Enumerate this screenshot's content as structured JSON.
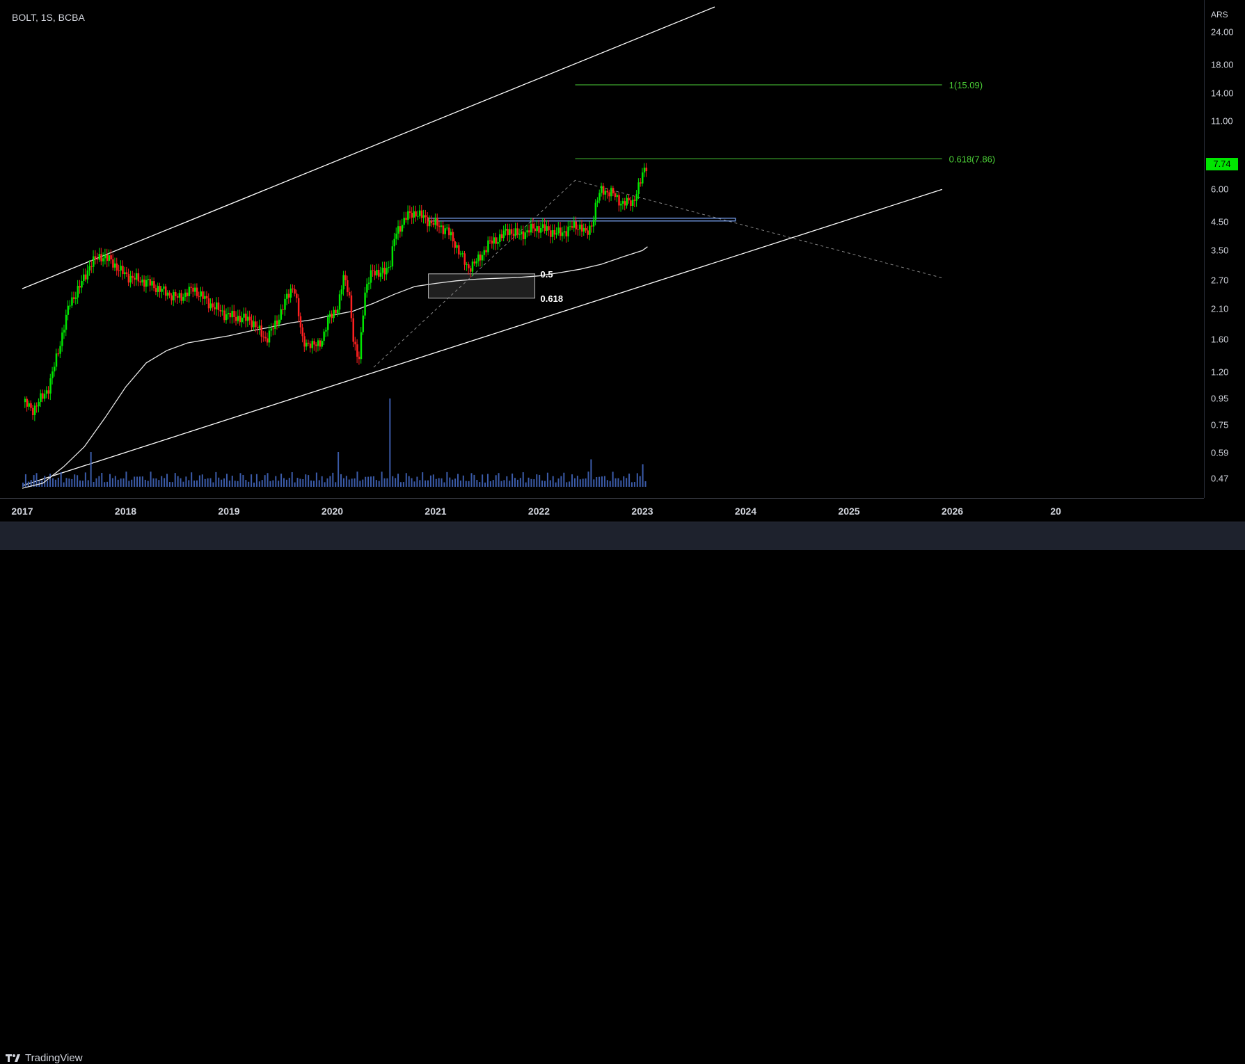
{
  "header": {
    "symbol": "BOLT, 1S, BCBA"
  },
  "price_axis": {
    "currency": "ARS",
    "ticks": [
      "24.00",
      "18.00",
      "14.00",
      "11.00",
      "6.00",
      "4.50",
      "3.50",
      "2.70",
      "2.10",
      "1.60",
      "1.20",
      "0.95",
      "0.75",
      "0.59",
      "0.47"
    ],
    "last_price": "7.74"
  },
  "time_axis": {
    "ticks": [
      "2017",
      "2018",
      "2019",
      "2020",
      "2021",
      "2022",
      "2023",
      "2024",
      "2025",
      "2026",
      "20"
    ]
  },
  "footer": {
    "brand": "TradingView"
  },
  "annotations": {
    "fib_top_label": "1(15.09)",
    "fib_mid_label": "0.618(7.86)",
    "retrace_05": "0.5",
    "retrace_0618": "0.618"
  },
  "colors": {
    "up": "#00e600",
    "down": "#ff2020",
    "fib_line": "#4cd137",
    "channel": "#ffffff",
    "resistance": "#6b8fd6",
    "volume": "#3b5ba9",
    "ma": "#e8e8e8"
  },
  "chart_data": {
    "type": "candlestick",
    "title": "",
    "symbol": "BOLT",
    "interval": "1S",
    "exchange": "BCBA",
    "scale": "log",
    "x_range": [
      2017.0,
      2027.0
    ],
    "y_range": [
      0.42,
      30
    ],
    "y_ticks": [
      24,
      18,
      14,
      11,
      6,
      4.5,
      3.5,
      2.7,
      2.1,
      1.6,
      1.2,
      0.95,
      0.75,
      0.59,
      0.47
    ],
    "last_price": 7.74,
    "price_path": [
      [
        2017.0,
        0.92
      ],
      [
        2017.1,
        0.86
      ],
      [
        2017.25,
        1.05
      ],
      [
        2017.35,
        1.5
      ],
      [
        2017.45,
        2.2
      ],
      [
        2017.55,
        2.55
      ],
      [
        2017.65,
        3.1
      ],
      [
        2017.75,
        3.35
      ],
      [
        2017.85,
        3.2
      ],
      [
        2017.95,
        2.9
      ],
      [
        2018.05,
        2.75
      ],
      [
        2018.2,
        2.65
      ],
      [
        2018.35,
        2.45
      ],
      [
        2018.5,
        2.3
      ],
      [
        2018.65,
        2.5
      ],
      [
        2018.8,
        2.2
      ],
      [
        2018.95,
        2.0
      ],
      [
        2019.05,
        1.95
      ],
      [
        2019.2,
        1.9
      ],
      [
        2019.35,
        1.6
      ],
      [
        2019.45,
        1.85
      ],
      [
        2019.55,
        2.3
      ],
      [
        2019.62,
        2.6
      ],
      [
        2019.7,
        1.6
      ],
      [
        2019.8,
        1.5
      ],
      [
        2019.9,
        1.6
      ],
      [
        2019.97,
        2.0
      ],
      [
        2020.05,
        2.1
      ],
      [
        2020.1,
        2.8
      ],
      [
        2020.15,
        2.5
      ],
      [
        2020.2,
        1.5
      ],
      [
        2020.25,
        1.35
      ],
      [
        2020.3,
        2.3
      ],
      [
        2020.38,
        3.0
      ],
      [
        2020.45,
        2.8
      ],
      [
        2020.55,
        3.1
      ],
      [
        2020.6,
        4.0
      ],
      [
        2020.7,
        4.7
      ],
      [
        2020.8,
        4.9
      ],
      [
        2020.9,
        4.6
      ],
      [
        2021.0,
        4.4
      ],
      [
        2021.1,
        4.2
      ],
      [
        2021.2,
        3.6
      ],
      [
        2021.3,
        3.0
      ],
      [
        2021.4,
        3.2
      ],
      [
        2021.5,
        3.7
      ],
      [
        2021.6,
        3.9
      ],
      [
        2021.7,
        4.2
      ],
      [
        2021.8,
        4.0
      ],
      [
        2021.9,
        4.2
      ],
      [
        2022.0,
        4.3
      ],
      [
        2022.1,
        4.15
      ],
      [
        2022.2,
        4.05
      ],
      [
        2022.3,
        4.3
      ],
      [
        2022.4,
        4.35
      ],
      [
        2022.45,
        4.0
      ],
      [
        2022.5,
        4.4
      ],
      [
        2022.55,
        5.4
      ],
      [
        2022.6,
        6.0
      ],
      [
        2022.7,
        5.8
      ],
      [
        2022.8,
        5.3
      ],
      [
        2022.9,
        5.4
      ],
      [
        2022.97,
        6.3
      ],
      [
        2023.0,
        7.0
      ],
      [
        2023.05,
        7.74
      ]
    ],
    "moving_average": [
      [
        2017.0,
        0.43
      ],
      [
        2017.2,
        0.45
      ],
      [
        2017.4,
        0.52
      ],
      [
        2017.6,
        0.62
      ],
      [
        2017.8,
        0.8
      ],
      [
        2018.0,
        1.05
      ],
      [
        2018.2,
        1.3
      ],
      [
        2018.4,
        1.45
      ],
      [
        2018.6,
        1.55
      ],
      [
        2018.8,
        1.6
      ],
      [
        2019.0,
        1.65
      ],
      [
        2019.2,
        1.72
      ],
      [
        2019.4,
        1.78
      ],
      [
        2019.6,
        1.85
      ],
      [
        2019.8,
        1.9
      ],
      [
        2020.0,
        1.98
      ],
      [
        2020.2,
        2.05
      ],
      [
        2020.4,
        2.2
      ],
      [
        2020.6,
        2.38
      ],
      [
        2020.8,
        2.55
      ],
      [
        2021.0,
        2.62
      ],
      [
        2021.2,
        2.68
      ],
      [
        2021.4,
        2.72
      ],
      [
        2021.6,
        2.74
      ],
      [
        2021.8,
        2.76
      ],
      [
        2022.0,
        2.8
      ],
      [
        2022.2,
        2.88
      ],
      [
        2022.4,
        2.97
      ],
      [
        2022.6,
        3.1
      ],
      [
        2022.8,
        3.3
      ],
      [
        2023.0,
        3.5
      ],
      [
        2023.05,
        3.62
      ]
    ],
    "channel_upper": [
      [
        2017.0,
        2.5
      ],
      [
        2023.7,
        30
      ]
    ],
    "channel_lower": [
      [
        2017.0,
        0.44
      ],
      [
        2025.9,
        6.0
      ]
    ],
    "resistance": {
      "price": 4.6,
      "x": [
        2020.93,
        2023.9
      ]
    },
    "retracement_zone": {
      "top": 2.85,
      "bottom": 2.3,
      "x": [
        2020.93,
        2021.96
      ],
      "levels": [
        "0.5",
        "0.618"
      ]
    },
    "fib_extension": [
      {
        "label": "1(15.09)",
        "price": 15.09,
        "x": [
          2022.35,
          2025.9
        ]
      },
      {
        "label": "0.618(7.86)",
        "price": 7.86,
        "x": [
          2022.35,
          2025.9
        ]
      }
    ],
    "dashed_projection": [
      [
        2020.4,
        1.25
      ],
      [
        2022.35,
        6.5
      ],
      [
        2025.9,
        2.75
      ]
    ],
    "volume_spikes": [
      [
        2017.65,
        1.0
      ],
      [
        2020.05,
        1.0
      ],
      [
        2020.55,
        3.2
      ],
      [
        2022.5,
        0.7
      ],
      [
        2023.0,
        0.5
      ]
    ]
  }
}
